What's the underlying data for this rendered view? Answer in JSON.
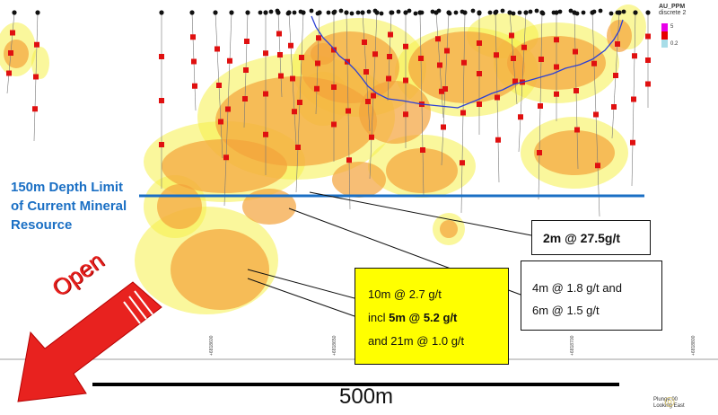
{
  "depth_limit": {
    "line1": "150m Depth Limit",
    "line2": "of Current Mineral",
    "line3": "Resource",
    "color": "#1a6fc4"
  },
  "legend": {
    "title1": "AU_PPM",
    "title2": "discrete 2",
    "max_label": "5",
    "min_label": "0.2",
    "colors": [
      "#e800e8",
      "#e60000",
      "#a8dde8"
    ]
  },
  "callouts": {
    "intercept_a": "2m @ 27.5g/t",
    "intercept_b_line1": "4m @ 1.8 g/t and",
    "intercept_b_line2": "6m @ 1.5 g/t",
    "intercept_c_line1": "10m @ 2.7 g/t",
    "intercept_c_incl": "incl ",
    "intercept_c_bold": "5m @ 5.2 g/t",
    "intercept_c_line3": "and 21m @ 1.0 g/t",
    "highlight_color": "#ffff00"
  },
  "open_arrow": {
    "label": "Open",
    "color": "#e8221f"
  },
  "scale_bar": {
    "label": "500m"
  },
  "northings": [
    "+6818600",
    "+6818650",
    "+6818700",
    "+6818800"
  ],
  "view": {
    "line1": "Plunge 00",
    "line2": "Looking East"
  }
}
